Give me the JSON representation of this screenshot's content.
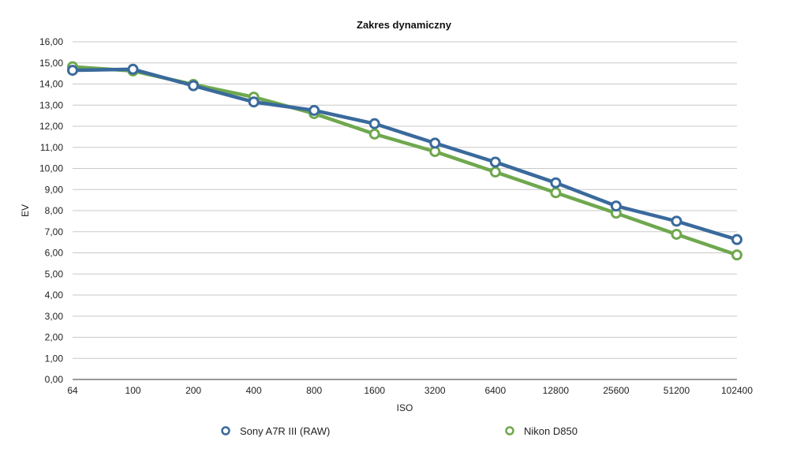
{
  "chart_data": {
    "type": "line",
    "title": "Zakres dynamiczny",
    "xlabel": "ISO",
    "ylabel": "EV",
    "categories": [
      "64",
      "100",
      "200",
      "400",
      "800",
      "1600",
      "3200",
      "6400",
      "12800",
      "25600",
      "51200",
      "102400"
    ],
    "ylim": [
      0,
      16
    ],
    "yticks": [
      "0,00",
      "1,00",
      "2,00",
      "3,00",
      "4,00",
      "5,00",
      "6,00",
      "7,00",
      "8,00",
      "9,00",
      "10,00",
      "11,00",
      "12,00",
      "13,00",
      "14,00",
      "15,00",
      "16,00"
    ],
    "grid": true,
    "legend_position": "bottom",
    "series": [
      {
        "name": "Sony A7R III (RAW)",
        "color": "#3a6a9c",
        "values": [
          14.65,
          14.7,
          13.92,
          13.15,
          12.75,
          12.12,
          11.2,
          10.3,
          9.32,
          8.22,
          7.5,
          6.63
        ]
      },
      {
        "name": "Nikon D850",
        "color": "#6fa84e",
        "values": [
          14.82,
          14.62,
          13.98,
          13.38,
          12.6,
          11.63,
          10.8,
          9.83,
          8.85,
          7.88,
          6.88,
          5.9
        ]
      }
    ]
  }
}
